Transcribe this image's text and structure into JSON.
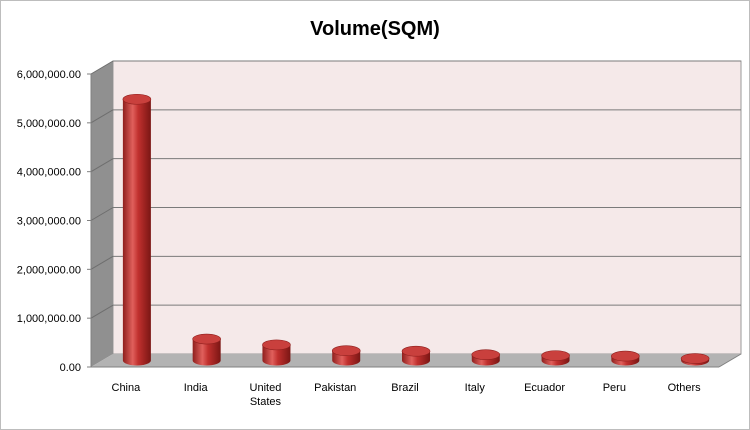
{
  "chart_data": {
    "type": "bar",
    "title": "Volume(SQM)",
    "xlabel": "",
    "ylabel": "",
    "ylim": [
      0,
      6000000
    ],
    "y_ticks": [
      "0.00",
      "1,000,000.00",
      "2,000,000.00",
      "3,000,000.00",
      "4,000,000.00",
      "5,000,000.00",
      "6,000,000.00"
    ],
    "categories": [
      [
        "China"
      ],
      [
        "India"
      ],
      [
        "United",
        "States"
      ],
      [
        "Pakistan"
      ],
      [
        "Brazil"
      ],
      [
        "Italy"
      ],
      [
        "Ecuador"
      ],
      [
        "Peru"
      ],
      [
        "Others"
      ]
    ],
    "series": [
      {
        "values": [
          5350000,
          440000,
          320000,
          200000,
          190000,
          120000,
          100000,
          90000,
          40000
        ]
      }
    ],
    "style": {
      "three_d": true,
      "bar_shape": "cylinder",
      "bar_color": "#c0302e",
      "plot_background": "#f5e9e9",
      "floor_color": "#b3b3b3",
      "wall_color": "#909090",
      "grid": true,
      "legend": "none"
    }
  }
}
